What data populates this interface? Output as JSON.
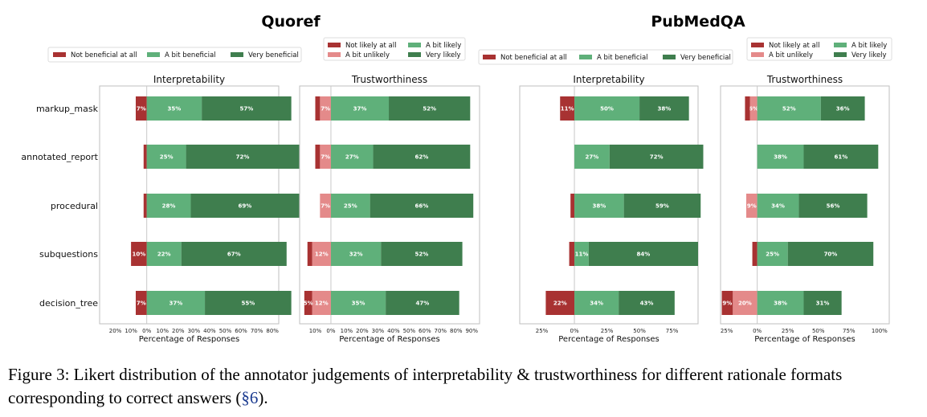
{
  "caption": {
    "text": "Figure 3: Likert distribution of the annotator judgements of interpretability & trustworthiness for different rationale formats corresponding to correct answers (",
    "ref": "§6",
    "end": ")."
  },
  "colors": {
    "dark_red": "#a83232",
    "light_red": "#e48a8a",
    "light_green": "#5fb07a",
    "dark_green": "#3f7e4e"
  },
  "datasets": [
    {
      "title": "Quoref"
    },
    {
      "title": "PubMedQA"
    }
  ],
  "legends": [
    {
      "items": [
        "Not beneficial at all",
        "A bit beneficial",
        "Very beneficial"
      ],
      "colors": [
        "#a83232",
        "#5fb07a",
        "#3f7e4e"
      ]
    },
    {
      "items": [
        "Not likely at all",
        "A bit likely",
        "A bit unlikely",
        "Very likely"
      ],
      "colors": [
        "#a83232",
        "#5fb07a",
        "#e48a8a",
        "#3f7e4e"
      ]
    },
    {
      "items": [
        "Not beneficial at all",
        "A bit beneficial",
        "Very beneficial"
      ],
      "colors": [
        "#a83232",
        "#5fb07a",
        "#3f7e4e"
      ]
    },
    {
      "items": [
        "Not likely at all",
        "A bit likely",
        "A bit unlikely",
        "Very likely"
      ],
      "colors": [
        "#a83232",
        "#5fb07a",
        "#e48a8a",
        "#3f7e4e"
      ]
    }
  ],
  "chart_data": [
    {
      "type": "bar",
      "orientation": "horizontal-diverging",
      "dataset": "Quoref",
      "title": "Interpretability",
      "xlabel": "Percentage of Responses",
      "categories": [
        "markup_mask",
        "annotated_report",
        "procedural",
        "subquestions",
        "decision_tree"
      ],
      "xlim": [
        -30,
        84
      ],
      "xticks": [
        -20,
        -10,
        0,
        10,
        20,
        30,
        40,
        50,
        60,
        70,
        80
      ],
      "xtick_labels": [
        "20%",
        "10%",
        "0%",
        "10%",
        "20%",
        "30%",
        "40%",
        "50%",
        "60%",
        "70%",
        "80%"
      ],
      "series": [
        {
          "name": "Not beneficial at all",
          "side": "neg",
          "color": "#a83232",
          "values": [
            7,
            2,
            2,
            10,
            7
          ],
          "labels": [
            "7%",
            "",
            "",
            "10%",
            "7%"
          ]
        },
        {
          "name": "A bit beneficial",
          "side": "pos",
          "color": "#5fb07a",
          "values": [
            35,
            25,
            28,
            22,
            37
          ],
          "labels": [
            "35%",
            "25%",
            "28%",
            "22%",
            "37%"
          ]
        },
        {
          "name": "Very beneficial",
          "side": "pos",
          "color": "#3f7e4e",
          "values": [
            57,
            72,
            69,
            67,
            55
          ],
          "labels": [
            "57%",
            "72%",
            "69%",
            "67%",
            "55%"
          ]
        }
      ]
    },
    {
      "type": "bar",
      "orientation": "horizontal-diverging",
      "dataset": "Quoref",
      "title": "Trustworthiness",
      "xlabel": "Percentage of Responses",
      "categories": [
        "markup_mask",
        "annotated_report",
        "procedural",
        "subquestions",
        "decision_tree"
      ],
      "xlim": [
        -20,
        95
      ],
      "xticks": [
        -10,
        0,
        10,
        20,
        30,
        40,
        50,
        60,
        70,
        80,
        90
      ],
      "xtick_labels": [
        "10%",
        "0%",
        "10%",
        "20%",
        "30%",
        "40%",
        "50%",
        "60%",
        "70%",
        "80%",
        "90%"
      ],
      "series": [
        {
          "name": "Not likely at all",
          "side": "neg-outer",
          "color": "#a83232",
          "values": [
            3,
            3,
            0,
            3,
            5
          ],
          "labels": [
            "",
            "",
            "",
            "",
            "5%"
          ]
        },
        {
          "name": "A bit unlikely",
          "side": "neg",
          "color": "#e48a8a",
          "values": [
            7,
            7,
            7,
            12,
            12
          ],
          "labels": [
            "7%",
            "7%",
            "7%",
            "12%",
            "12%"
          ]
        },
        {
          "name": "A bit likely",
          "side": "pos",
          "color": "#5fb07a",
          "values": [
            37,
            27,
            25,
            32,
            35
          ],
          "labels": [
            "37%",
            "27%",
            "25%",
            "32%",
            "35%"
          ]
        },
        {
          "name": "Very likely",
          "side": "pos",
          "color": "#3f7e4e",
          "values": [
            52,
            62,
            66,
            52,
            47
          ],
          "labels": [
            "52%",
            "62%",
            "66%",
            "52%",
            "47%"
          ]
        }
      ]
    },
    {
      "type": "bar",
      "orientation": "horizontal-diverging",
      "dataset": "PubMedQA",
      "title": "Interpretability",
      "xlabel": "Percentage of Responses",
      "categories": [
        "markup_mask",
        "annotated_report",
        "procedural",
        "subquestions",
        "decision_tree"
      ],
      "xlim": [
        -42,
        95
      ],
      "xticks": [
        -25,
        0,
        25,
        50,
        75
      ],
      "xtick_labels": [
        "25%",
        "0%",
        "25%",
        "50%",
        "75%"
      ],
      "series": [
        {
          "name": "Not beneficial at all",
          "side": "neg",
          "color": "#a83232",
          "values": [
            11,
            0,
            3,
            4,
            22
          ],
          "labels": [
            "11%",
            "",
            "",
            "",
            "22%"
          ]
        },
        {
          "name": "A bit beneficial",
          "side": "pos",
          "color": "#5fb07a",
          "values": [
            50,
            27,
            38,
            11,
            34
          ],
          "labels": [
            "50%",
            "27%",
            "38%",
            "11%",
            "34%"
          ]
        },
        {
          "name": "Very beneficial",
          "side": "pos",
          "color": "#3f7e4e",
          "values": [
            38,
            72,
            59,
            84,
            43
          ],
          "labels": [
            "38%",
            "72%",
            "59%",
            "84%",
            "43%"
          ]
        }
      ]
    },
    {
      "type": "bar",
      "orientation": "horizontal-diverging",
      "dataset": "PubMedQA",
      "title": "Trustworthiness",
      "xlabel": "Percentage of Responses",
      "categories": [
        "markup_mask",
        "annotated_report",
        "procedural",
        "subquestions",
        "decision_tree"
      ],
      "xlim": [
        -30,
        108
      ],
      "xticks": [
        -25,
        0,
        25,
        50,
        75,
        100
      ],
      "xtick_labels": [
        "25%",
        "0%",
        "25%",
        "50%",
        "75%",
        "100%"
      ],
      "series": [
        {
          "name": "Not likely at all",
          "side": "neg-outer",
          "color": "#a83232",
          "values": [
            4,
            0,
            0,
            4,
            9
          ],
          "labels": [
            "",
            "",
            "",
            "",
            "9%"
          ]
        },
        {
          "name": "A bit unlikely",
          "side": "neg",
          "color": "#e48a8a",
          "values": [
            6,
            0,
            9,
            0,
            20
          ],
          "labels": [
            "6%",
            "",
            "9%",
            "",
            "20%"
          ]
        },
        {
          "name": "A bit likely",
          "side": "pos",
          "color": "#5fb07a",
          "values": [
            52,
            38,
            34,
            25,
            38
          ],
          "labels": [
            "52%",
            "38%",
            "34%",
            "25%",
            "38%"
          ]
        },
        {
          "name": "Very likely",
          "side": "pos",
          "color": "#3f7e4e",
          "values": [
            36,
            61,
            56,
            70,
            31
          ],
          "labels": [
            "36%",
            "61%",
            "56%",
            "70%",
            "31%"
          ]
        }
      ]
    }
  ]
}
